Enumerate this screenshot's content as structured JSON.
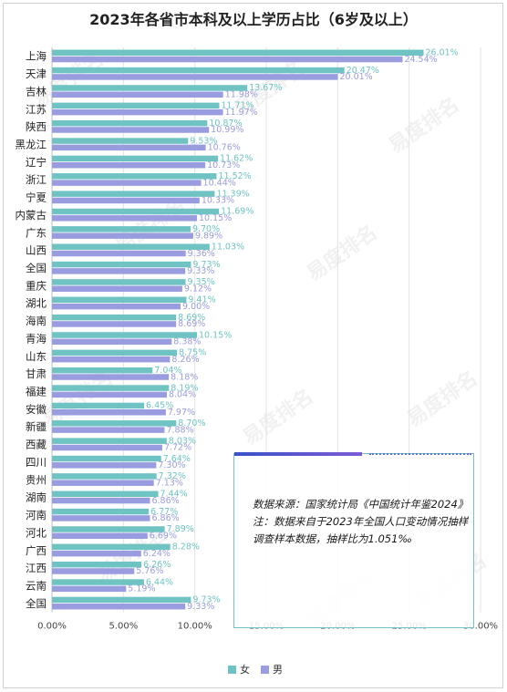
{
  "watermark": "易度排名",
  "chart_data": {
    "type": "bar",
    "orientation": "horizontal",
    "title": "2023年各省市本科及以上学历占比（6岁及以上）",
    "categories": [
      "上海",
      "天津",
      "吉林",
      "江苏",
      "陕西",
      "黑龙江",
      "辽宁",
      "浙江",
      "宁夏",
      "内蒙古",
      "广东",
      "山西",
      "全国",
      "重庆",
      "湖北",
      "海南",
      "青海",
      "山东",
      "甘肃",
      "福建",
      "安徽",
      "新疆",
      "西藏",
      "四川",
      "贵州",
      "湖南",
      "河南",
      "河北",
      "广西",
      "江西",
      "云南",
      "全国"
    ],
    "series": [
      {
        "name": "女",
        "color": "#6fc4c3",
        "values": [
          26.01,
          20.47,
          13.67,
          11.71,
          10.87,
          9.53,
          11.62,
          11.52,
          11.39,
          11.69,
          9.7,
          11.03,
          9.73,
          9.35,
          9.41,
          8.69,
          10.15,
          8.75,
          7.04,
          8.19,
          6.45,
          8.7,
          8.03,
          7.64,
          7.32,
          7.44,
          6.77,
          7.89,
          8.28,
          6.26,
          6.44,
          9.73
        ]
      },
      {
        "name": "男",
        "color": "#9a9ce0",
        "values": [
          24.54,
          20.01,
          11.98,
          11.97,
          10.99,
          10.76,
          10.73,
          10.44,
          10.33,
          10.15,
          9.89,
          9.36,
          9.33,
          9.12,
          9.0,
          8.69,
          8.38,
          8.26,
          8.18,
          8.04,
          7.97,
          7.88,
          7.72,
          7.3,
          7.13,
          6.86,
          6.86,
          6.69,
          6.24,
          5.76,
          5.19,
          9.33
        ]
      }
    ],
    "value_labels": {
      "女": [
        "26.01%",
        "20.47%",
        "13.67%",
        "11.71%",
        "10.87%",
        "9.53%",
        "11.62%",
        "11.52%",
        "11.39%",
        "11.69%",
        "9.70%",
        "11.03%",
        "9.73%",
        "9.35%",
        "9.41%",
        "8.69%",
        "10.15%",
        "8.75%",
        "7.04%",
        "8.19%",
        "6.45%",
        "8.70%",
        "8.03%",
        "7.64%",
        "7.32%",
        "7.44%",
        "6.77%",
        "7.89%",
        "8.28%",
        "6.26%",
        "6.44%",
        "9.73%"
      ],
      "男": [
        "24.54%",
        "20.01%",
        "11.98%",
        "11.97%",
        "10.99%",
        "10.76%",
        "10.73%",
        "10.44%",
        "10.33%",
        "10.15%",
        "9.89%",
        "9.36%",
        "9.33%",
        "9.12%",
        "9.00%",
        "8.69%",
        "8.38%",
        "8.26%",
        "8.18%",
        "8.04%",
        "7.97%",
        "7.88%",
        "7.72%",
        "7.30%",
        "7.13%",
        "6.86%",
        "6.86%",
        "6.69%",
        "6.24%",
        "5.76%",
        "5.19%",
        "9.33%"
      ]
    },
    "x_ticks": [
      "0.00%",
      "5.00%",
      "10.00%",
      "15.00%",
      "20.00%",
      "25.00%",
      "30.00%"
    ],
    "xlim": [
      0,
      30
    ],
    "grid": true,
    "legend": "bottom"
  },
  "note": {
    "line1": "数据来源：国家统计局《中国统计年鉴2024》",
    "line2": "注：数据来自于2023年全国人口变动情况抽样调查样本数据，抽样比为1.051‰"
  }
}
